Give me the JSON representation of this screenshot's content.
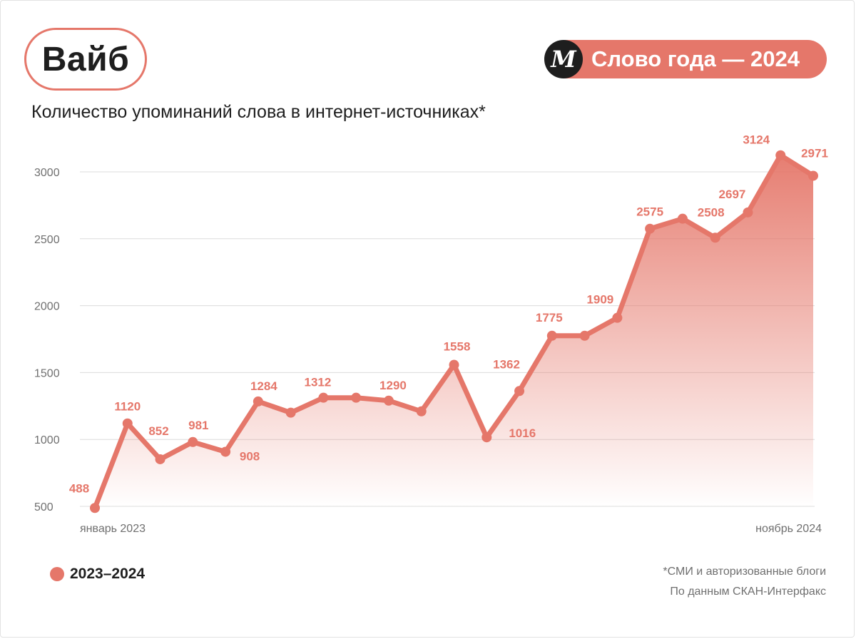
{
  "header": {
    "word": "Вайб",
    "badge_logo": "M",
    "badge_text": "Слово года — 2024",
    "subtitle": "Количество упоминаний слова в интернет-источниках*"
  },
  "colors": {
    "accent": "#e5776a",
    "text": "#1e1e1e",
    "muted": "#6f6f6f",
    "grid": "#dcdcdc"
  },
  "chart_data": {
    "type": "area",
    "series": [
      {
        "name": "2023–2024",
        "values": [
          488,
          1120,
          852,
          981,
          908,
          1284,
          1200,
          1312,
          1312,
          1290,
          1210,
          1558,
          1016,
          1362,
          1775,
          1775,
          1909,
          2575,
          2650,
          2508,
          2697,
          3124,
          2971
        ],
        "labels": [
          "488",
          "1120",
          "852",
          "981",
          "908",
          "1284",
          "",
          "1312",
          "",
          "1290",
          "",
          "1558",
          "1016",
          "1362",
          "1775",
          "",
          "1909",
          "2575",
          "",
          "2508",
          "2697",
          "3124",
          "2971"
        ]
      }
    ],
    "x_start_label": "январь 2023",
    "x_end_label": "ноябрь 2024",
    "yticks": [
      500,
      1000,
      1500,
      2000,
      2500,
      3000
    ],
    "ylim": [
      500,
      3000
    ],
    "grid": true
  },
  "legend": {
    "label": "2023–2024"
  },
  "footnotes": {
    "line1": "*СМИ и авторизованные блоги",
    "line2": "По данным СКАН-Интерфакс"
  }
}
